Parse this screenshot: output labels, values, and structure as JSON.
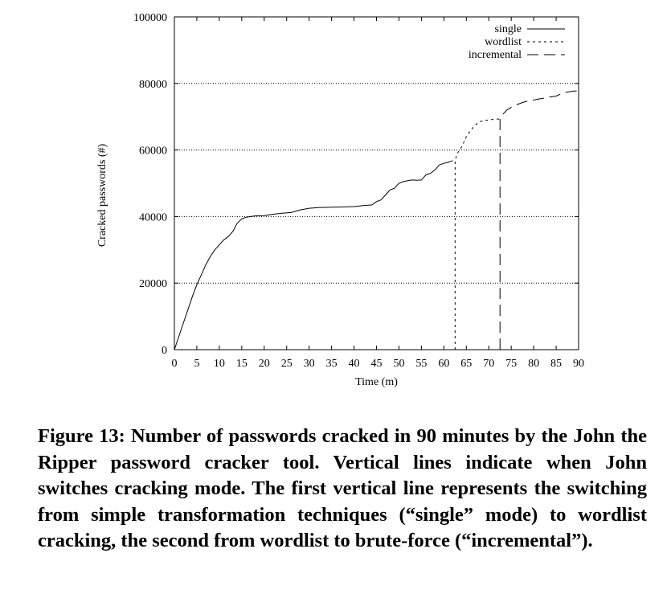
{
  "chart_data": {
    "type": "line",
    "xlabel": "Time (m)",
    "ylabel": "Cracked passwords (#)",
    "xlim": [
      0,
      90
    ],
    "ylim": [
      0,
      100000
    ],
    "xticks": [
      "0",
      "5",
      "10",
      "15",
      "20",
      "25",
      "30",
      "35",
      "40",
      "45",
      "50",
      "55",
      "60",
      "65",
      "70",
      "75",
      "80",
      "85",
      "90"
    ],
    "yticks": [
      "0",
      "20000",
      "40000",
      "60000",
      "80000",
      "100000"
    ],
    "grid": "horizontal dotted",
    "legend_position": "top-right",
    "series": [
      {
        "name": "single",
        "style": "solid",
        "points": [
          [
            0,
            0
          ],
          [
            2,
            8000
          ],
          [
            4,
            16000
          ],
          [
            5,
            19500
          ],
          [
            6,
            22500
          ],
          [
            7,
            25500
          ],
          [
            8,
            28000
          ],
          [
            9,
            30000
          ],
          [
            10,
            31500
          ],
          [
            11,
            33000
          ],
          [
            12,
            34000
          ],
          [
            13,
            35500
          ],
          [
            14,
            38000
          ],
          [
            15,
            39300
          ],
          [
            16,
            39800
          ],
          [
            17,
            40000
          ],
          [
            18,
            40200
          ],
          [
            20,
            40300
          ],
          [
            22,
            40700
          ],
          [
            24,
            41000
          ],
          [
            26,
            41200
          ],
          [
            28,
            42000
          ],
          [
            30,
            42500
          ],
          [
            32,
            42700
          ],
          [
            35,
            42800
          ],
          [
            38,
            42900
          ],
          [
            40,
            43000
          ],
          [
            42,
            43300
          ],
          [
            44,
            43500
          ],
          [
            45,
            44500
          ],
          [
            46,
            45000
          ],
          [
            47,
            46500
          ],
          [
            48,
            48000
          ],
          [
            49,
            48500
          ],
          [
            50,
            50000
          ],
          [
            51,
            50500
          ],
          [
            52,
            50800
          ],
          [
            53,
            51000
          ],
          [
            54,
            50900
          ],
          [
            55,
            51000
          ],
          [
            56,
            52500
          ],
          [
            57,
            53000
          ],
          [
            58,
            54000
          ],
          [
            59,
            55500
          ],
          [
            60,
            56000
          ],
          [
            61,
            56300
          ],
          [
            62,
            56800
          ]
        ]
      },
      {
        "name": "wordlist",
        "style": "dotted",
        "points": [
          [
            62.5,
            0
          ],
          [
            62.5,
            56800
          ],
          [
            63,
            59000
          ],
          [
            64,
            61000
          ],
          [
            65,
            64000
          ],
          [
            66,
            66000
          ],
          [
            67,
            67500
          ],
          [
            68,
            68500
          ],
          [
            69,
            68900
          ],
          [
            70,
            69000
          ],
          [
            71,
            69200
          ],
          [
            72,
            69300
          ],
          [
            72.5,
            69300
          ]
        ]
      },
      {
        "name": "incremental",
        "style": "dashed",
        "points": [
          [
            72.5,
            0
          ],
          [
            72.5,
            69300
          ],
          [
            73,
            70500
          ],
          [
            74,
            72000
          ],
          [
            75,
            72800
          ],
          [
            76,
            73500
          ],
          [
            77,
            74000
          ],
          [
            78,
            74500
          ],
          [
            79,
            74800
          ],
          [
            80,
            75000
          ],
          [
            81,
            75300
          ],
          [
            82,
            75500
          ],
          [
            83,
            75800
          ],
          [
            84,
            76000
          ],
          [
            85,
            76200
          ],
          [
            86,
            76800
          ],
          [
            87,
            77300
          ],
          [
            88,
            77500
          ],
          [
            89,
            77700
          ],
          [
            90,
            77800
          ]
        ]
      }
    ]
  },
  "caption": "Figure 13: Number of passwords cracked in 90 minutes by the John the Ripper password cracker tool. Vertical lines indicate when John switches cracking mode. The first vertical line represents the switching from simple transformation techniques (“single” mode) to wordlist cracking, the second from wordlist to brute-force (“incremental”)."
}
